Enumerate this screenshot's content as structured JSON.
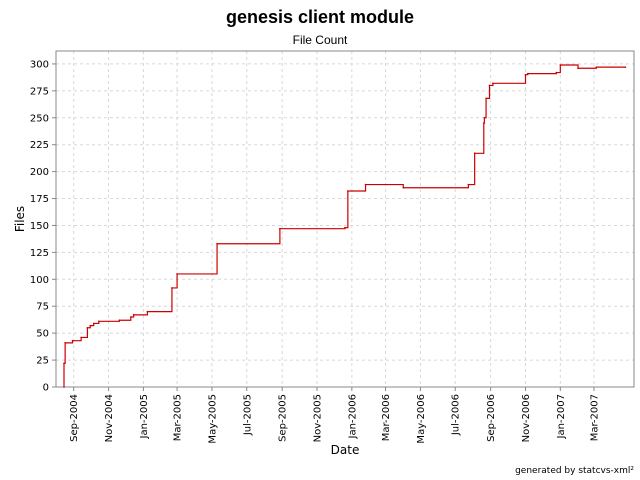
{
  "chart_data": {
    "type": "line",
    "title": "genesis client module",
    "subtitle": "File Count",
    "xlabel": "Date",
    "ylabel": "Files",
    "footer": "generated by statcvs-xml²",
    "xlim": [
      "2004-08-01",
      "2007-05-10"
    ],
    "ylim": [
      0,
      312
    ],
    "y_ticks": [
      0,
      25,
      50,
      75,
      100,
      125,
      150,
      175,
      200,
      225,
      250,
      275,
      300
    ],
    "x_ticks": [
      {
        "date": "2004-09-01",
        "label": "Sep-2004"
      },
      {
        "date": "2004-11-01",
        "label": "Nov-2004"
      },
      {
        "date": "2005-01-01",
        "label": "Jan-2005"
      },
      {
        "date": "2005-03-01",
        "label": "Mar-2005"
      },
      {
        "date": "2005-05-01",
        "label": "May-2005"
      },
      {
        "date": "2005-07-01",
        "label": "Jul-2005"
      },
      {
        "date": "2005-09-01",
        "label": "Sep-2005"
      },
      {
        "date": "2005-11-01",
        "label": "Nov-2005"
      },
      {
        "date": "2006-01-01",
        "label": "Jan-2006"
      },
      {
        "date": "2006-03-01",
        "label": "Mar-2006"
      },
      {
        "date": "2006-05-01",
        "label": "May-2006"
      },
      {
        "date": "2006-07-01",
        "label": "Jul-2006"
      },
      {
        "date": "2006-09-01",
        "label": "Sep-2006"
      },
      {
        "date": "2006-11-01",
        "label": "Nov-2006"
      },
      {
        "date": "2007-01-01",
        "label": "Jan-2007"
      },
      {
        "date": "2007-03-01",
        "label": "Mar-2007"
      }
    ],
    "grid": true,
    "step": true,
    "color": "#cc0000",
    "series": [
      {
        "points": [
          {
            "x": "2004-08-15",
            "y": 0
          },
          {
            "x": "2004-08-15",
            "y": 22
          },
          {
            "x": "2004-08-17",
            "y": 41
          },
          {
            "x": "2004-08-30",
            "y": 43
          },
          {
            "x": "2004-09-14",
            "y": 46
          },
          {
            "x": "2004-09-25",
            "y": 55
          },
          {
            "x": "2004-09-30",
            "y": 57
          },
          {
            "x": "2004-10-06",
            "y": 59
          },
          {
            "x": "2004-10-15",
            "y": 61
          },
          {
            "x": "2004-11-20",
            "y": 62
          },
          {
            "x": "2004-12-10",
            "y": 65
          },
          {
            "x": "2004-12-15",
            "y": 67
          },
          {
            "x": "2005-01-08",
            "y": 70
          },
          {
            "x": "2005-02-20",
            "y": 92
          },
          {
            "x": "2005-03-01",
            "y": 105
          },
          {
            "x": "2005-05-10",
            "y": 133
          },
          {
            "x": "2005-08-28",
            "y": 147
          },
          {
            "x": "2005-12-20",
            "y": 148
          },
          {
            "x": "2005-12-25",
            "y": 182
          },
          {
            "x": "2006-01-25",
            "y": 188
          },
          {
            "x": "2006-04-01",
            "y": 185
          },
          {
            "x": "2006-07-24",
            "y": 188
          },
          {
            "x": "2006-08-04",
            "y": 217
          },
          {
            "x": "2006-08-20",
            "y": 245
          },
          {
            "x": "2006-08-21",
            "y": 250
          },
          {
            "x": "2006-08-24",
            "y": 268
          },
          {
            "x": "2006-08-30",
            "y": 280
          },
          {
            "x": "2006-09-05",
            "y": 282
          },
          {
            "x": "2006-11-01",
            "y": 290
          },
          {
            "x": "2006-11-05",
            "y": 291
          },
          {
            "x": "2006-12-25",
            "y": 292
          },
          {
            "x": "2007-01-01",
            "y": 299
          },
          {
            "x": "2007-02-01",
            "y": 296
          },
          {
            "x": "2007-03-05",
            "y": 297
          },
          {
            "x": "2007-04-25",
            "y": 297
          }
        ]
      }
    ]
  }
}
